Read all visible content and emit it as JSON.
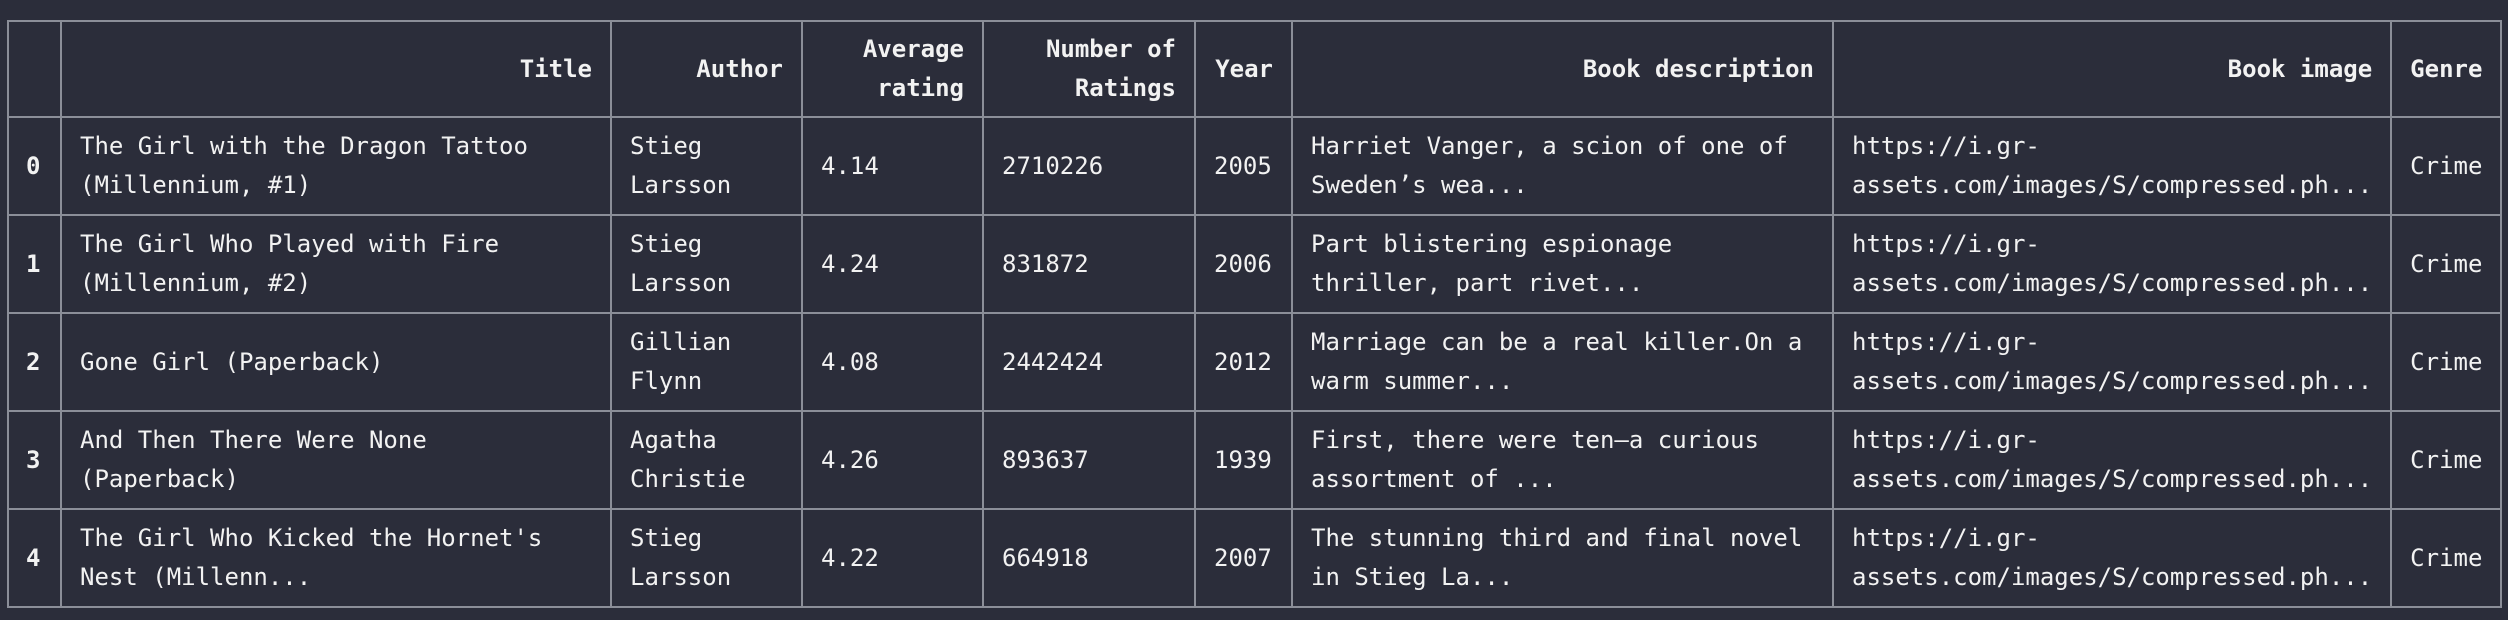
{
  "table": {
    "columns": [
      "",
      "Title",
      "Author",
      "Average rating",
      "Number of Ratings",
      "Year",
      "Book description",
      "Book image",
      "Genre"
    ],
    "rows": [
      {
        "index": "0",
        "title": "The Girl with the Dragon Tattoo (Millennium, #1)",
        "author": "Stieg Larsson",
        "rating": "4.14",
        "num_ratings": "2710226",
        "year": "2005",
        "description": "Harriet Vanger, a scion of one of Sweden’s wea...",
        "image": "https://i.gr-assets.com/images/S/compressed.ph...",
        "genre": "Crime"
      },
      {
        "index": "1",
        "title": "The Girl Who Played with Fire (Millennium, #2)",
        "author": "Stieg Larsson",
        "rating": "4.24",
        "num_ratings": "831872",
        "year": "2006",
        "description": "Part blistering espionage thriller, part rivet...",
        "image": "https://i.gr-assets.com/images/S/compressed.ph...",
        "genre": "Crime"
      },
      {
        "index": "2",
        "title": "Gone Girl (Paperback)",
        "author": "Gillian Flynn",
        "rating": "4.08",
        "num_ratings": "2442424",
        "year": "2012",
        "description": "Marriage can be a real killer.On a warm summer...",
        "image": "https://i.gr-assets.com/images/S/compressed.ph...",
        "genre": "Crime"
      },
      {
        "index": "3",
        "title": "And Then There Were None (Paperback)",
        "author": "Agatha Christie",
        "rating": "4.26",
        "num_ratings": "893637",
        "year": "1939",
        "description": "First, there were ten—a curious assortment of ...",
        "image": "https://i.gr-assets.com/images/S/compressed.ph...",
        "genre": "Crime"
      },
      {
        "index": "4",
        "title": "The Girl Who Kicked the Hornet's Nest (Millenn...",
        "author": "Stieg Larsson",
        "rating": "4.22",
        "num_ratings": "664918",
        "year": "2007",
        "description": "The stunning third and final novel in Stieg La...",
        "image": "https://i.gr-assets.com/images/S/compressed.ph...",
        "genre": "Crime"
      }
    ]
  }
}
